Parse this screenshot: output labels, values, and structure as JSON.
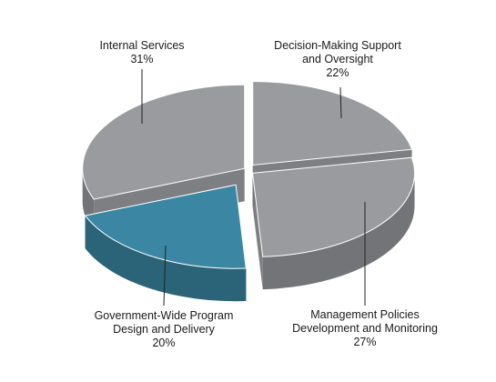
{
  "chart_data": {
    "type": "pie",
    "title": "",
    "style": "3d-exploded",
    "slices": [
      {
        "name": "Decision-Making Support and Oversight",
        "label_lines": [
          "Decision-Making Support",
          "and Oversight"
        ],
        "value": 22,
        "value_label": "22%",
        "color": "#9a9b9e"
      },
      {
        "name": "Management Policies Development and Monitoring",
        "label_lines": [
          "Management Policies",
          "Development and Monitoring"
        ],
        "value": 27,
        "value_label": "27%",
        "color": "#9a9b9e"
      },
      {
        "name": "Government-Wide Program Design and Delivery",
        "label_lines": [
          "Government-Wide Program",
          "Design and Delivery"
        ],
        "value": 20,
        "value_label": "20%",
        "color": "#3b87a3"
      },
      {
        "name": "Internal Services",
        "label_lines": [
          "Internal Services"
        ],
        "value": 31,
        "value_label": "31%",
        "color": "#9a9b9e"
      }
    ],
    "side_colors": {
      "gray": "#737478",
      "teal": "#2b6478"
    },
    "background": "#ffffff"
  }
}
